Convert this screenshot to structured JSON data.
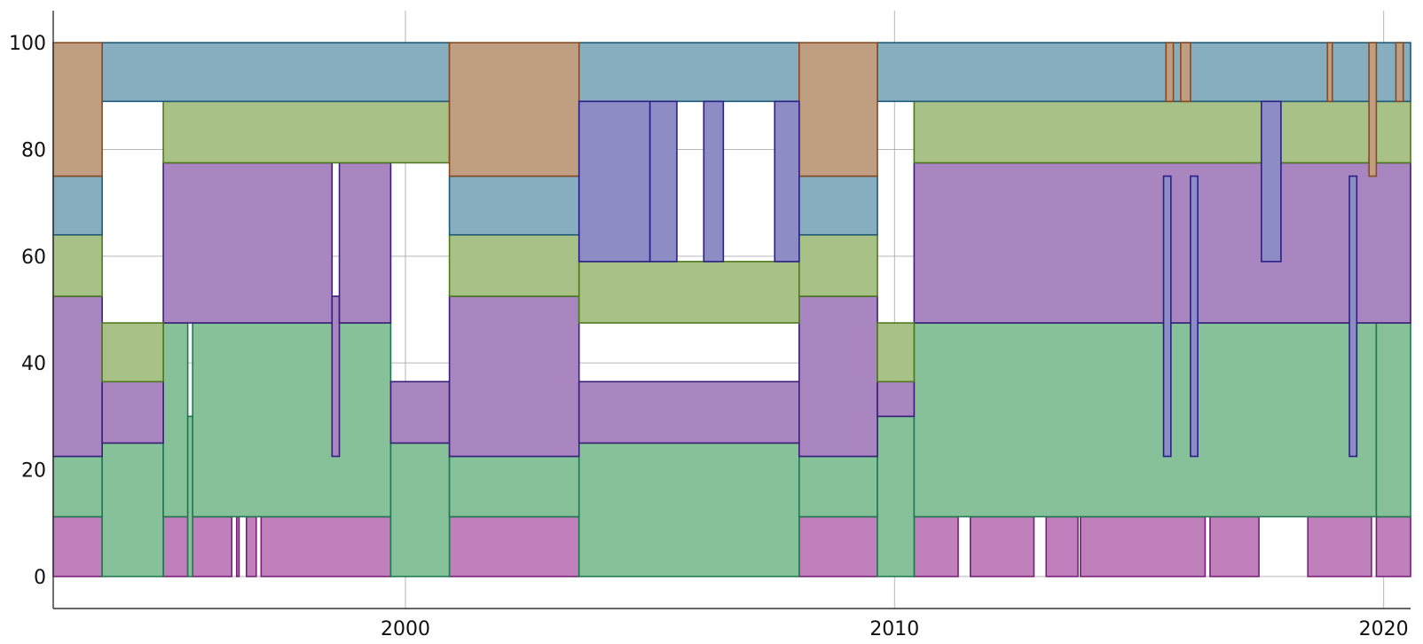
{
  "chart_data": {
    "type": "area",
    "title": "",
    "xlabel": "",
    "ylabel": "",
    "stacked": true,
    "step": true,
    "xlim": [
      1992.8,
      2020.55
    ],
    "ylim": [
      -6,
      106
    ],
    "grid": true,
    "legend": "none",
    "x_ticks": [
      2000,
      2010,
      2020
    ],
    "x_tick_labels": [
      "2000",
      "2010",
      "2020"
    ],
    "y_ticks": [
      0,
      20,
      40,
      60,
      80,
      100
    ],
    "y_tick_labels": [
      "0",
      "20",
      "40",
      "60",
      "80",
      "100"
    ],
    "series": [
      {
        "fill": "#c080bc",
        "stroke": "#7a1f78",
        "segments": [
          {
            "x": 1992.8,
            "low": 0,
            "high": 11.2
          },
          {
            "x": 1993.8,
            "low": 0,
            "high": 0
          },
          {
            "x": 1995.05,
            "low": 0,
            "high": 11.2
          },
          {
            "x": 1995.55,
            "low": 0,
            "high": 0
          },
          {
            "x": 1995.65,
            "low": 0,
            "high": 11.2
          },
          {
            "x": 1996.45,
            "low": 0,
            "high": 0
          },
          {
            "x": 1996.55,
            "low": 0,
            "high": 11.2
          },
          {
            "x": 1996.6,
            "low": 0,
            "high": 0
          },
          {
            "x": 1996.75,
            "low": 0,
            "high": 11.2
          },
          {
            "x": 1996.95,
            "low": 0,
            "high": 0
          },
          {
            "x": 1997.05,
            "low": 0,
            "high": 11.2
          },
          {
            "x": 1999.7,
            "low": 0,
            "high": 0
          },
          {
            "x": 2000.9,
            "low": 0,
            "high": 11.2
          },
          {
            "x": 2003.55,
            "low": 0,
            "high": 0
          },
          {
            "x": 2008.05,
            "low": 0,
            "high": 11.2
          },
          {
            "x": 2009.65,
            "low": 0,
            "high": 0
          },
          {
            "x": 2010.4,
            "low": 0,
            "high": 11.2
          },
          {
            "x": 2011.3,
            "low": 0,
            "high": 0
          },
          {
            "x": 2011.55,
            "low": 0,
            "high": 11.2
          },
          {
            "x": 2012.85,
            "low": 0,
            "high": 0
          },
          {
            "x": 2013.1,
            "low": 0,
            "high": 11.2
          },
          {
            "x": 2013.75,
            "low": 0,
            "high": 0
          },
          {
            "x": 2013.8,
            "low": 0,
            "high": 11.2
          },
          {
            "x": 2016.35,
            "low": 0,
            "high": 0
          },
          {
            "x": 2016.45,
            "low": 0,
            "high": 11.2
          },
          {
            "x": 2017.45,
            "low": 0,
            "high": 0
          },
          {
            "x": 2018.45,
            "low": 0,
            "high": 11.2
          },
          {
            "x": 2019.75,
            "low": 0,
            "high": 0
          },
          {
            "x": 2019.85,
            "low": 0,
            "high": 11.2
          },
          {
            "x": 2020.55,
            "low": 0,
            "high": 11.2
          }
        ]
      },
      {
        "fill": "#86c19a",
        "stroke": "#1f7a4f",
        "segments": [
          {
            "x": 1992.8,
            "low": 11.2,
            "high": 22.5
          },
          {
            "x": 1993.8,
            "low": 0,
            "high": 25
          },
          {
            "x": 1995.05,
            "low": 11.2,
            "high": 47.5
          },
          {
            "x": 1995.55,
            "low": 0,
            "high": 30
          },
          {
            "x": 1995.65,
            "low": 11.2,
            "high": 47.5
          },
          {
            "x": 1999.7,
            "low": 0,
            "high": 25
          },
          {
            "x": 2000.9,
            "low": 11.2,
            "high": 22.5
          },
          {
            "x": 2003.55,
            "low": 0,
            "high": 25
          },
          {
            "x": 2008.05,
            "low": 11.2,
            "high": 22.5
          },
          {
            "x": 2009.65,
            "low": 0,
            "high": 30
          },
          {
            "x": 2010.4,
            "low": 11.2,
            "high": 47.5
          },
          {
            "x": 2019.85,
            "low": 11.2,
            "high": 47.5
          },
          {
            "x": 2020.55,
            "low": 11.2,
            "high": 47.5
          }
        ]
      },
      {
        "fill": "#a986bf",
        "stroke": "#3a1f7a",
        "segments": [
          {
            "x": 1992.8,
            "low": 22.5,
            "high": 52.5
          },
          {
            "x": 1993.8,
            "low": 25,
            "high": 36.5
          },
          {
            "x": 1995.05,
            "low": 47.5,
            "high": 77.5
          },
          {
            "x": 1998.5,
            "low": 22.5,
            "high": 52.5
          },
          {
            "x": 1998.65,
            "low": 47.5,
            "high": 77.5
          },
          {
            "x": 1999.7,
            "low": 25,
            "high": 36.5
          },
          {
            "x": 2000.9,
            "low": 22.5,
            "high": 52.5
          },
          {
            "x": 2003.55,
            "low": 25,
            "high": 36.5
          },
          {
            "x": 2008.05,
            "low": 22.5,
            "high": 52.5
          },
          {
            "x": 2009.65,
            "low": 30,
            "high": 36.5
          },
          {
            "x": 2010.4,
            "low": 47.5,
            "high": 77.5
          },
          {
            "x": 2020.55,
            "low": 47.5,
            "high": 77.5
          }
        ]
      },
      {
        "fill": "#a8c186",
        "stroke": "#4f7a1f",
        "segments": [
          {
            "x": 1992.8,
            "low": 52.5,
            "high": 64
          },
          {
            "x": 1993.8,
            "low": 36.5,
            "high": 47.5
          },
          {
            "x": 1995.05,
            "low": 77.5,
            "high": 89
          },
          {
            "x": 2000.9,
            "low": 52.5,
            "high": 64
          },
          {
            "x": 2003.55,
            "low": 47.5,
            "high": 59
          },
          {
            "x": 2008.05,
            "low": 52.5,
            "high": 64
          },
          {
            "x": 2009.65,
            "low": 36.5,
            "high": 47.5
          },
          {
            "x": 2010.4,
            "low": 77.5,
            "high": 89
          },
          {
            "x": 2020.55,
            "low": 77.5,
            "high": 89
          }
        ]
      },
      {
        "fill": "#86aebf",
        "stroke": "#1f5a7a",
        "segments": [
          {
            "x": 1992.8,
            "low": 64,
            "high": 75
          },
          {
            "x": 1993.8,
            "low": 89,
            "high": 100
          },
          {
            "x": 2000.9,
            "low": 64,
            "high": 75
          },
          {
            "x": 2003.55,
            "low": 89,
            "high": 100
          },
          {
            "x": 2008.05,
            "low": 64,
            "high": 75
          },
          {
            "x": 2009.65,
            "low": 89,
            "high": 100
          },
          {
            "x": 2020.55,
            "low": 89,
            "high": 100
          }
        ]
      },
      {
        "fill": "#bf9e82",
        "stroke": "#8a4a1f",
        "segments": [
          {
            "x": 1992.8,
            "low": 75,
            "high": 100
          },
          {
            "x": 1993.8,
            "low": 100,
            "high": 100
          },
          {
            "x": 2000.9,
            "low": 75,
            "high": 100
          },
          {
            "x": 2003.55,
            "low": 100,
            "high": 100
          },
          {
            "x": 2008.05,
            "low": 75,
            "high": 100
          },
          {
            "x": 2009.65,
            "low": 100,
            "high": 100
          },
          {
            "x": 2015.55,
            "low": 89,
            "high": 100
          },
          {
            "x": 2015.7,
            "low": 100,
            "high": 100
          },
          {
            "x": 2015.85,
            "low": 89,
            "high": 100
          },
          {
            "x": 2016.05,
            "low": 100,
            "high": 100
          },
          {
            "x": 2018.85,
            "low": 89,
            "high": 100
          },
          {
            "x": 2018.95,
            "low": 100,
            "high": 100
          },
          {
            "x": 2019.7,
            "low": 75,
            "high": 100
          },
          {
            "x": 2019.85,
            "low": 100,
            "high": 100
          },
          {
            "x": 2020.25,
            "low": 89,
            "high": 100
          },
          {
            "x": 2020.4,
            "low": 100,
            "high": 100
          },
          {
            "x": 2020.55,
            "low": 100,
            "high": 100
          }
        ]
      },
      {
        "fill": "#8e8cc4",
        "stroke": "#2a1f8a",
        "segments": [
          {
            "x": 2003.55,
            "low": 59,
            "high": 89
          },
          {
            "x": 2005.0,
            "low": 59,
            "high": 89
          },
          {
            "x": 2005.55,
            "low": 59,
            "high": 59
          },
          {
            "x": 2006.1,
            "low": 59,
            "high": 89
          },
          {
            "x": 2006.5,
            "low": 59,
            "high": 59
          },
          {
            "x": 2007.55,
            "low": 59,
            "high": 89
          },
          {
            "x": 2008.05,
            "low": 64,
            "high": 64
          },
          {
            "x": 2015.5,
            "low": 22.5,
            "high": 75
          },
          {
            "x": 2015.65,
            "low": 64,
            "high": 64
          },
          {
            "x": 2016.05,
            "low": 22.5,
            "high": 75
          },
          {
            "x": 2016.2,
            "low": 64,
            "high": 64
          },
          {
            "x": 2017.5,
            "low": 59,
            "high": 89
          },
          {
            "x": 2017.9,
            "low": 64,
            "high": 64
          },
          {
            "x": 2019.3,
            "low": 22.5,
            "high": 75
          },
          {
            "x": 2019.45,
            "low": 64,
            "high": 64
          },
          {
            "x": 2020.55,
            "low": 64,
            "high": 64
          }
        ]
      }
    ]
  }
}
